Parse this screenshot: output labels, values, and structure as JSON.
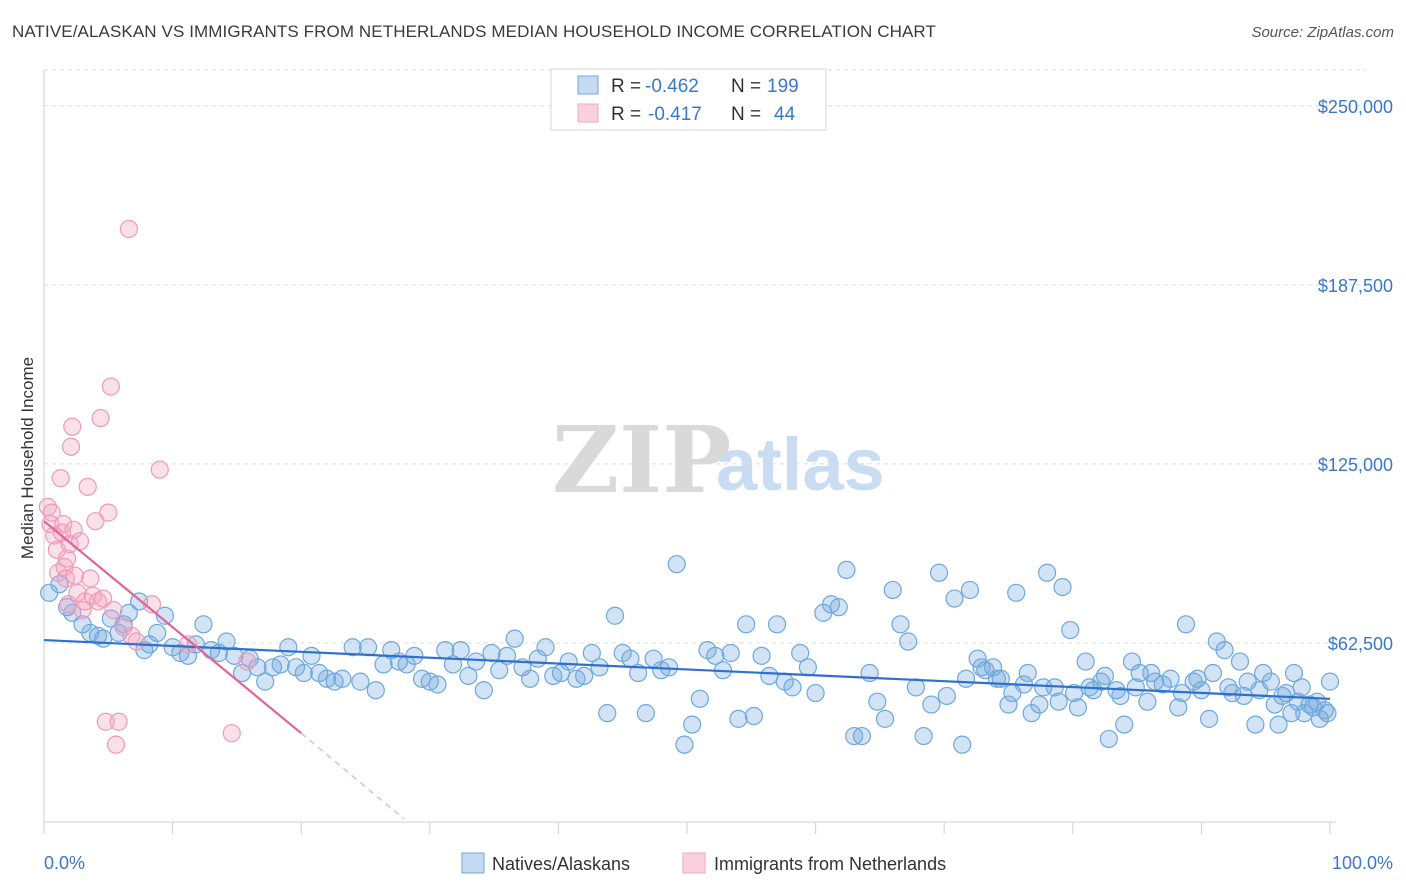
{
  "header": {
    "title": "NATIVE/ALASKAN VS IMMIGRANTS FROM NETHERLANDS MEDIAN HOUSEHOLD INCOME CORRELATION CHART",
    "source": "Source: ZipAtlas.com"
  },
  "watermark": {
    "zip": "ZIP",
    "atlas": "atlas"
  },
  "legend_box": {
    "row1": {
      "r_label": "R =",
      "r_value": "-0.462",
      "n_label": "N =",
      "n_value": "199"
    },
    "row2": {
      "r_label": "R =",
      "r_value": "-0.417",
      "n_label": "N =",
      "n_value": "44"
    }
  },
  "bottom_legend": {
    "item1": "Natives/Alaskans",
    "item2": "Immigrants from Netherlands"
  },
  "colors": {
    "blue": "#6fa8dc",
    "blue_line": "#2f6fce",
    "pink": "#f2a7c1",
    "pink_line": "#e0649a",
    "tick_text": "#3a78c9"
  },
  "chart_data": {
    "type": "scatter",
    "title": "NATIVE/ALASKAN VS IMMIGRANTS FROM NETHERLANDS MEDIAN HOUSEHOLD INCOME CORRELATION CHART",
    "xlabel": "",
    "ylabel": "Median Household Income",
    "xlim": [
      0,
      100
    ],
    "ylim": [
      0,
      262500
    ],
    "x_tick_labels": [
      "0.0%",
      "100.0%"
    ],
    "y_ticks": [
      62500,
      125000,
      187500,
      250000
    ],
    "y_tick_labels": [
      "$62,500",
      "$125,000",
      "$187,500",
      "$250,000"
    ],
    "grid": true,
    "legend_position": "top-center",
    "series": [
      {
        "name": "Natives/Alaskans",
        "color": "#6fa8dc",
        "R": -0.462,
        "N": 199,
        "trend": {
          "x": [
            0,
            100
          ],
          "y": [
            63500,
            43000
          ]
        },
        "points": [
          [
            0.4,
            80000
          ],
          [
            1.2,
            83000
          ],
          [
            1.8,
            75000
          ],
          [
            2.2,
            73000
          ],
          [
            3.0,
            69000
          ],
          [
            3.6,
            66000
          ],
          [
            4.2,
            65000
          ],
          [
            4.6,
            64000
          ],
          [
            5.2,
            71000
          ],
          [
            5.8,
            66000
          ],
          [
            6.2,
            69000
          ],
          [
            6.6,
            73000
          ],
          [
            7.4,
            77000
          ],
          [
            7.8,
            60000
          ],
          [
            8.2,
            62000
          ],
          [
            8.8,
            66000
          ],
          [
            9.4,
            72000
          ],
          [
            10.0,
            61000
          ],
          [
            10.6,
            59000
          ],
          [
            11.2,
            58000
          ],
          [
            11.8,
            62000
          ],
          [
            12.4,
            69000
          ],
          [
            13.0,
            60000
          ],
          [
            13.6,
            59000
          ],
          [
            14.2,
            63000
          ],
          [
            14.8,
            58000
          ],
          [
            15.4,
            52000
          ],
          [
            16.0,
            57000
          ],
          [
            16.6,
            54000
          ],
          [
            17.2,
            49000
          ],
          [
            17.8,
            54000
          ],
          [
            18.4,
            55000
          ],
          [
            19.0,
            61000
          ],
          [
            19.6,
            54000
          ],
          [
            20.2,
            52000
          ],
          [
            20.8,
            58000
          ],
          [
            21.4,
            52000
          ],
          [
            22.0,
            50000
          ],
          [
            22.6,
            49000
          ],
          [
            23.2,
            50000
          ],
          [
            24.0,
            61000
          ],
          [
            24.6,
            49000
          ],
          [
            25.2,
            61000
          ],
          [
            25.8,
            46000
          ],
          [
            26.4,
            55000
          ],
          [
            27.0,
            60000
          ],
          [
            27.6,
            56000
          ],
          [
            28.2,
            55000
          ],
          [
            28.8,
            58000
          ],
          [
            29.4,
            50000
          ],
          [
            30.0,
            49000
          ],
          [
            30.6,
            48000
          ],
          [
            31.2,
            60000
          ],
          [
            31.8,
            55000
          ],
          [
            32.4,
            60000
          ],
          [
            33.0,
            51000
          ],
          [
            33.6,
            56000
          ],
          [
            34.2,
            46000
          ],
          [
            34.8,
            59000
          ],
          [
            35.4,
            53000
          ],
          [
            36.0,
            58000
          ],
          [
            36.6,
            64000
          ],
          [
            37.2,
            54000
          ],
          [
            37.8,
            50000
          ],
          [
            38.4,
            57000
          ],
          [
            39.0,
            61000
          ],
          [
            39.6,
            51000
          ],
          [
            40.2,
            52000
          ],
          [
            40.8,
            56000
          ],
          [
            41.4,
            50000
          ],
          [
            42.0,
            51000
          ],
          [
            42.6,
            59000
          ],
          [
            43.2,
            54000
          ],
          [
            43.8,
            38000
          ],
          [
            44.4,
            72000
          ],
          [
            45.0,
            59000
          ],
          [
            45.6,
            57000
          ],
          [
            46.2,
            52000
          ],
          [
            46.8,
            38000
          ],
          [
            47.4,
            57000
          ],
          [
            48.0,
            53000
          ],
          [
            48.6,
            54000
          ],
          [
            49.2,
            90000
          ],
          [
            49.8,
            27000
          ],
          [
            50.4,
            34000
          ],
          [
            51.0,
            43000
          ],
          [
            51.6,
            60000
          ],
          [
            52.2,
            58000
          ],
          [
            52.8,
            53000
          ],
          [
            53.4,
            59000
          ],
          [
            54.0,
            36000
          ],
          [
            54.6,
            69000
          ],
          [
            55.2,
            37000
          ],
          [
            55.8,
            58000
          ],
          [
            56.4,
            51000
          ],
          [
            57.0,
            69000
          ],
          [
            57.6,
            49000
          ],
          [
            58.2,
            47000
          ],
          [
            58.8,
            59000
          ],
          [
            59.4,
            54000
          ],
          [
            60.0,
            45000
          ],
          [
            60.6,
            73000
          ],
          [
            61.2,
            76000
          ],
          [
            61.8,
            75000
          ],
          [
            62.4,
            88000
          ],
          [
            63.0,
            30000
          ],
          [
            63.6,
            30000
          ],
          [
            64.2,
            52000
          ],
          [
            64.8,
            42000
          ],
          [
            65.4,
            36000
          ],
          [
            66.0,
            81000
          ],
          [
            66.6,
            69000
          ],
          [
            67.2,
            63000
          ],
          [
            67.8,
            47000
          ],
          [
            68.4,
            30000
          ],
          [
            69.0,
            41000
          ],
          [
            69.6,
            87000
          ],
          [
            70.2,
            44000
          ],
          [
            70.8,
            78000
          ],
          [
            71.4,
            27000
          ],
          [
            72.0,
            81000
          ],
          [
            72.6,
            57000
          ],
          [
            73.2,
            53000
          ],
          [
            73.8,
            54000
          ],
          [
            74.4,
            50000
          ],
          [
            75.0,
            41000
          ],
          [
            75.6,
            80000
          ],
          [
            76.2,
            48000
          ],
          [
            76.8,
            38000
          ],
          [
            77.4,
            41000
          ],
          [
            78.0,
            87000
          ],
          [
            78.6,
            47000
          ],
          [
            79.2,
            82000
          ],
          [
            79.8,
            67000
          ],
          [
            80.4,
            40000
          ],
          [
            81.0,
            56000
          ],
          [
            81.6,
            46000
          ],
          [
            82.2,
            49000
          ],
          [
            82.8,
            29000
          ],
          [
            83.4,
            46000
          ],
          [
            84.0,
            34000
          ],
          [
            84.6,
            56000
          ],
          [
            85.2,
            52000
          ],
          [
            85.8,
            42000
          ],
          [
            86.4,
            49000
          ],
          [
            87.0,
            48000
          ],
          [
            87.6,
            50000
          ],
          [
            88.2,
            40000
          ],
          [
            88.8,
            69000
          ],
          [
            89.4,
            49000
          ],
          [
            90.0,
            46000
          ],
          [
            90.6,
            36000
          ],
          [
            91.2,
            63000
          ],
          [
            91.8,
            60000
          ],
          [
            92.4,
            45000
          ],
          [
            93.0,
            56000
          ],
          [
            93.6,
            49000
          ],
          [
            94.2,
            34000
          ],
          [
            94.8,
            52000
          ],
          [
            95.4,
            49000
          ],
          [
            96.0,
            34000
          ],
          [
            96.6,
            45000
          ],
          [
            97.2,
            52000
          ],
          [
            97.8,
            47000
          ],
          [
            98.4,
            41000
          ],
          [
            99.0,
            42000
          ],
          [
            99.6,
            39000
          ],
          [
            100.0,
            49000
          ],
          [
            96.3,
            44000
          ],
          [
            97.0,
            38000
          ],
          [
            97.5,
            42000
          ],
          [
            98.0,
            38000
          ],
          [
            98.7,
            40000
          ],
          [
            99.2,
            36000
          ],
          [
            99.8,
            38000
          ],
          [
            95.7,
            41000
          ],
          [
            94.5,
            46000
          ],
          [
            93.3,
            44000
          ],
          [
            92.1,
            47000
          ],
          [
            90.9,
            52000
          ],
          [
            89.7,
            50000
          ],
          [
            88.5,
            45000
          ],
          [
            86.1,
            52000
          ],
          [
            84.9,
            47000
          ],
          [
            83.7,
            44000
          ],
          [
            82.5,
            51000
          ],
          [
            81.3,
            47000
          ],
          [
            80.1,
            45000
          ],
          [
            78.9,
            42000
          ],
          [
            77.7,
            47000
          ],
          [
            76.5,
            52000
          ],
          [
            75.3,
            45000
          ],
          [
            74.1,
            50000
          ],
          [
            72.9,
            54000
          ],
          [
            71.7,
            50000
          ]
        ]
      },
      {
        "name": "Immigrants from Netherlands",
        "color": "#f2a7c1",
        "R": -0.417,
        "N": 44,
        "trend": {
          "x": [
            0,
            20
          ],
          "y": [
            105000,
            31000
          ]
        },
        "trend_dashed": {
          "x": [
            20,
            28
          ],
          "y": [
            31000,
            1000
          ]
        },
        "points": [
          [
            0.3,
            110000
          ],
          [
            0.5,
            104000
          ],
          [
            0.6,
            108000
          ],
          [
            0.8,
            100000
          ],
          [
            1.0,
            95000
          ],
          [
            1.1,
            87000
          ],
          [
            1.3,
            120000
          ],
          [
            1.4,
            101000
          ],
          [
            1.5,
            104000
          ],
          [
            1.6,
            89000
          ],
          [
            1.7,
            85000
          ],
          [
            1.8,
            92000
          ],
          [
            1.9,
            76000
          ],
          [
            2.0,
            97000
          ],
          [
            2.1,
            131000
          ],
          [
            2.2,
            138000
          ],
          [
            2.3,
            102000
          ],
          [
            2.4,
            86000
          ],
          [
            2.6,
            80000
          ],
          [
            2.8,
            98000
          ],
          [
            3.0,
            74000
          ],
          [
            3.2,
            77000
          ],
          [
            3.4,
            117000
          ],
          [
            3.6,
            85000
          ],
          [
            3.8,
            79000
          ],
          [
            4.0,
            105000
          ],
          [
            4.2,
            77000
          ],
          [
            4.4,
            141000
          ],
          [
            4.6,
            78000
          ],
          [
            4.8,
            35000
          ],
          [
            5.0,
            108000
          ],
          [
            5.2,
            152000
          ],
          [
            5.4,
            74000
          ],
          [
            5.6,
            27000
          ],
          [
            5.8,
            35000
          ],
          [
            6.2,
            68000
          ],
          [
            6.6,
            207000
          ],
          [
            6.8,
            65000
          ],
          [
            7.2,
            63000
          ],
          [
            8.4,
            76000
          ],
          [
            9.0,
            123000
          ],
          [
            11.2,
            62000
          ],
          [
            14.6,
            31000
          ],
          [
            15.8,
            56000
          ]
        ]
      }
    ]
  }
}
